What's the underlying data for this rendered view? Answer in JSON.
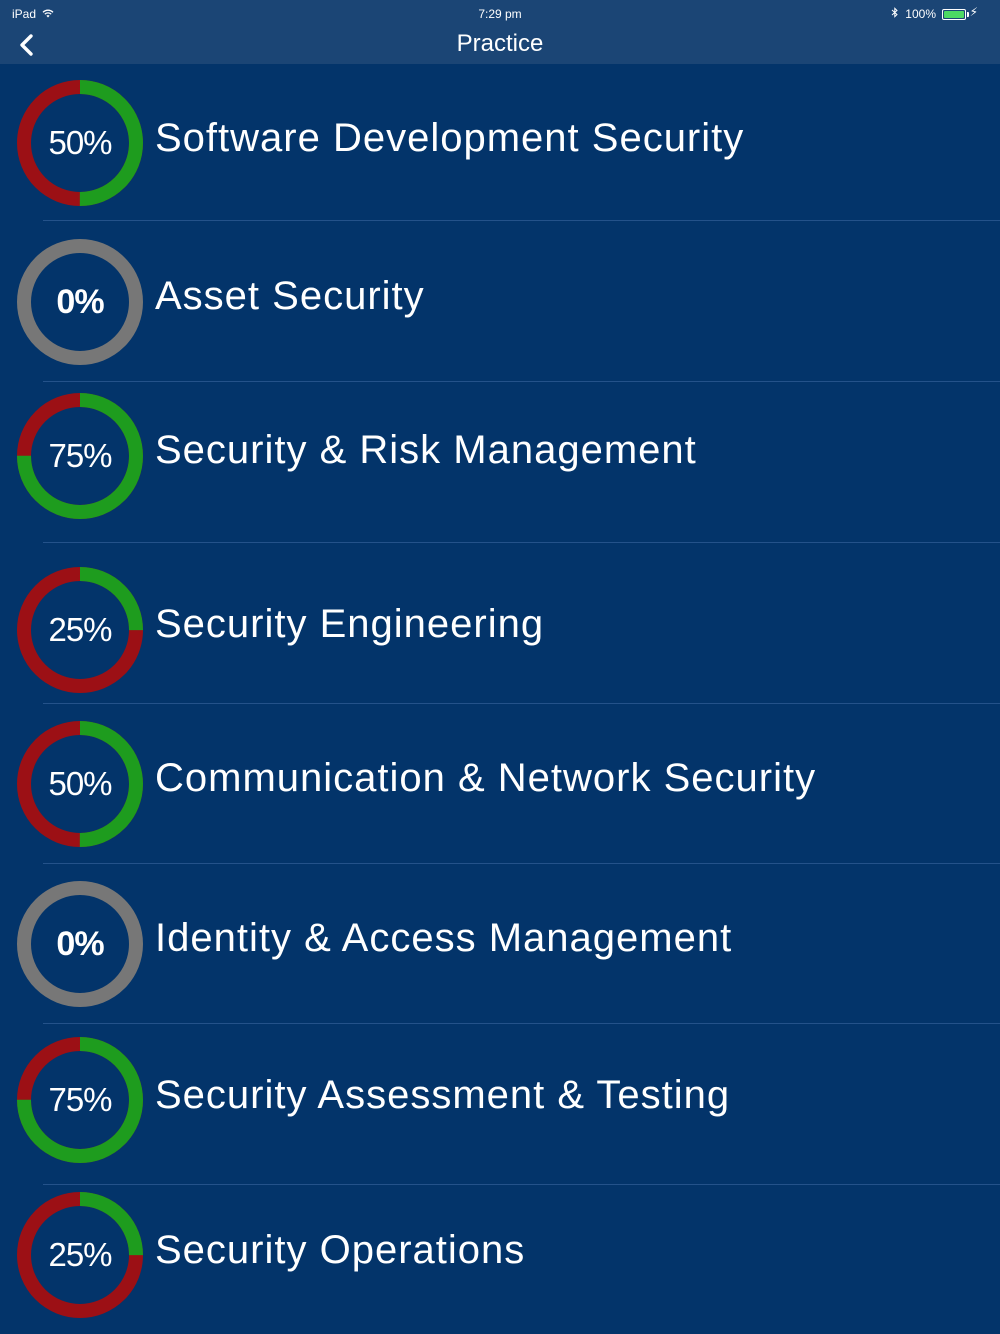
{
  "status_bar": {
    "device": "iPad",
    "time": "7:29 pm",
    "battery": "100%",
    "battery_level": 1.0
  },
  "nav": {
    "title": "Practice",
    "back_icon": "chevron-left-icon"
  },
  "colors": {
    "background": "#03346a",
    "bar": "#1b4575",
    "correct": "#1e9c1e",
    "incorrect": "#9c1015",
    "unattempted": "#777777",
    "divider": "#24528a"
  },
  "topics": [
    {
      "label": "Software Development Security",
      "percent_label": "50%",
      "percent": 50
    },
    {
      "label": "Asset Security",
      "percent_label": "0%",
      "percent": 0
    },
    {
      "label": "Security & Risk Management",
      "percent_label": "75%",
      "percent": 75
    },
    {
      "label": "Security Engineering",
      "percent_label": "25%",
      "percent": 25
    },
    {
      "label": "Communication & Network Security",
      "percent_label": "50%",
      "percent": 50
    },
    {
      "label": "Identity & Access Management",
      "percent_label": "0%",
      "percent": 0
    },
    {
      "label": "Security Assessment & Testing",
      "percent_label": "75%",
      "percent": 75
    },
    {
      "label": "Security Operations",
      "percent_label": "25%",
      "percent": 25
    }
  ]
}
